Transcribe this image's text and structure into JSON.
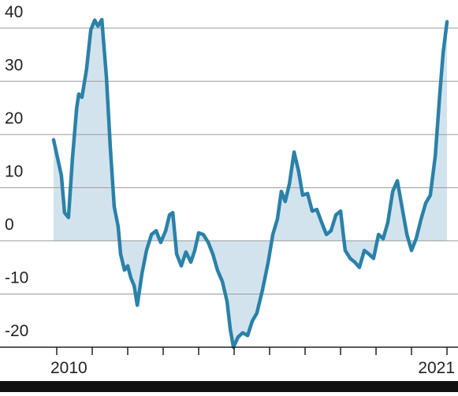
{
  "chart_data": {
    "type": "line",
    "color": "#2b81a8",
    "fill_color": "#d3e3ee",
    "grid": true,
    "x": [
      2009.91,
      2010.13,
      2010.22,
      2010.33,
      2010.44,
      2010.56,
      2010.62,
      2010.71,
      2010.84,
      2010.96,
      2011.07,
      2011.16,
      2011.27,
      2011.4,
      2011.51,
      2011.62,
      2011.73,
      2011.8,
      2011.91,
      2012.0,
      2012.09,
      2012.18,
      2012.27,
      2012.4,
      2012.53,
      2012.67,
      2012.8,
      2012.93,
      2013.07,
      2013.18,
      2013.27,
      2013.38,
      2013.51,
      2013.64,
      2013.78,
      2013.89,
      2014.0,
      2014.13,
      2014.27,
      2014.4,
      2014.53,
      2014.67,
      2014.8,
      2014.89,
      2014.98,
      2015.11,
      2015.24,
      2015.38,
      2015.51,
      2015.64,
      2015.8,
      2015.96,
      2016.09,
      2016.22,
      2016.33,
      2016.44,
      2016.56,
      2016.69,
      2016.82,
      2016.93,
      2017.07,
      2017.2,
      2017.33,
      2017.47,
      2017.6,
      2017.73,
      2017.87,
      2018.0,
      2018.13,
      2018.27,
      2018.4,
      2018.53,
      2018.67,
      2018.8,
      2018.93,
      2019.07,
      2019.2,
      2019.33,
      2019.47,
      2019.6,
      2019.73,
      2019.87,
      2020.0,
      2020.13,
      2020.27,
      2020.4,
      2020.53,
      2020.67,
      2020.8,
      2020.89,
      2021.0
    ],
    "values": [
      19,
      12.3,
      5.3,
      4.4,
      15.3,
      24.9,
      27.6,
      27,
      32.3,
      39.7,
      41.5,
      40.4,
      41.6,
      30.8,
      17.5,
      6.4,
      2.7,
      -2.5,
      -5.5,
      -4.7,
      -7,
      -8.4,
      -12.1,
      -6.2,
      -1.8,
      1.2,
      1.9,
      -0.3,
      1.9,
      4.9,
      5.3,
      -2.5,
      -4.7,
      -2.1,
      -4,
      -1.8,
      1.5,
      1.2,
      -0.3,
      -2.5,
      -5.5,
      -7.7,
      -11.4,
      -16.6,
      -20,
      -18.1,
      -17.3,
      -17.8,
      -15.1,
      -13.6,
      -9.2,
      -4,
      1.2,
      4.1,
      9.3,
      7.4,
      10.8,
      16.7,
      13,
      8.6,
      8.9,
      5.6,
      5.9,
      3.4,
      1.2,
      1.9,
      4.9,
      5.6,
      -1.8,
      -3.3,
      -4,
      -5,
      -1.8,
      -2.5,
      -3.3,
      1.2,
      0.4,
      3.4,
      9.3,
      11.3,
      6.4,
      1.2,
      -1.8,
      0.4,
      4.1,
      7.1,
      8.6,
      16,
      27.9,
      35.3,
      41.2
    ],
    "xlim": [
      2008.4,
      2021.31
    ],
    "ylim": [
      -20,
      45
    ],
    "yticks": [
      -20,
      -10,
      0,
      10,
      20,
      30,
      40
    ],
    "xticks": [
      {
        "value": 2010,
        "label": "2010"
      },
      {
        "value": 2011,
        "label": null
      },
      {
        "value": 2012,
        "label": null
      },
      {
        "value": 2013,
        "label": null
      },
      {
        "value": 2014,
        "label": null
      },
      {
        "value": 2015,
        "label": null
      },
      {
        "value": 2016,
        "label": null
      },
      {
        "value": 2017,
        "label": null
      },
      {
        "value": 2018,
        "label": null
      },
      {
        "value": 2019,
        "label": null
      },
      {
        "value": 2020,
        "label": null
      },
      {
        "value": 2021,
        "label": "2021"
      }
    ]
  }
}
